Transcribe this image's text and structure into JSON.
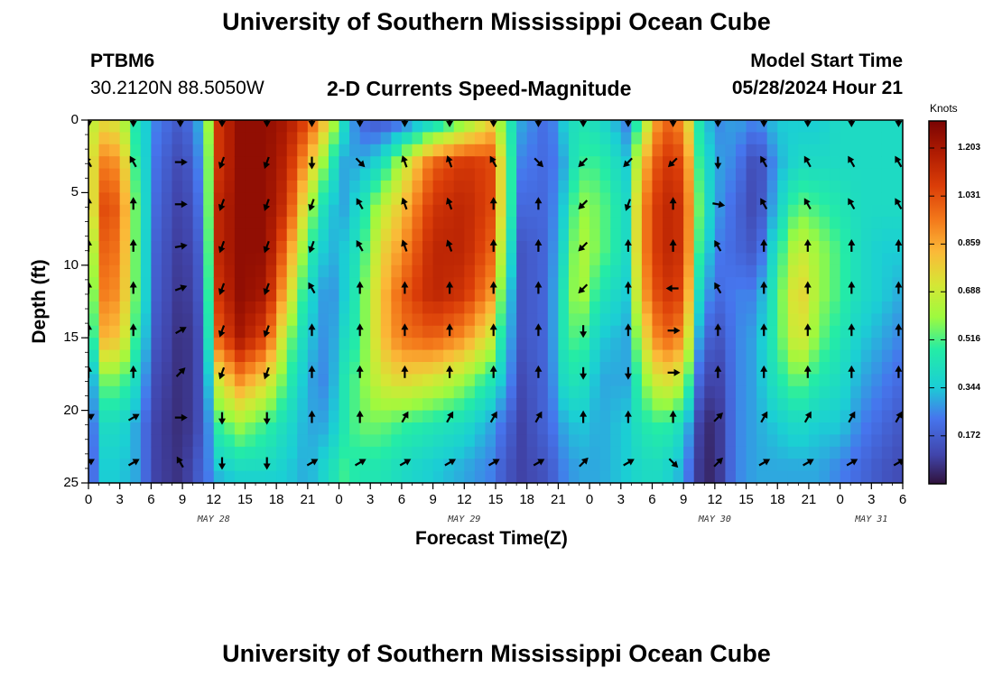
{
  "header": {
    "title_top": "University of Southern Mississippi Ocean Cube",
    "title_bottom": "University of Southern Mississippi Ocean Cube",
    "station_id": "PTBM6",
    "coordinates": "30.2120N  88.5050W",
    "plot_title": "2-D Currents Speed-Magnitude",
    "model_start_label": "Model Start Time",
    "model_start_value": "05/28/2024 Hour 21"
  },
  "chart_data": {
    "type": "heatmap",
    "title": "2-D Currents Speed-Magnitude",
    "xlabel": "Forecast Time(Z)",
    "ylabel": "Depth (ft)",
    "xlim": [
      0,
      78
    ],
    "ylim": [
      25,
      0
    ],
    "x_tick_values": [
      0,
      3,
      6,
      9,
      12,
      15,
      18,
      21,
      24,
      27,
      30,
      33,
      36,
      39,
      42,
      45,
      48,
      51,
      54,
      57,
      60,
      63,
      66,
      69,
      72,
      75,
      78
    ],
    "x_tick_labels": [
      "0",
      "3",
      "6",
      "9",
      "12",
      "15",
      "18",
      "21",
      "0",
      "3",
      "6",
      "9",
      "12",
      "15",
      "18",
      "21",
      "0",
      "3",
      "6",
      "9",
      "12",
      "15",
      "18",
      "21",
      "0",
      "3",
      "6"
    ],
    "y_tick_values": [
      0,
      5,
      10,
      15,
      20,
      25
    ],
    "y_tick_labels": [
      "0",
      "5",
      "10",
      "15",
      "20",
      "25"
    ],
    "date_labels": [
      {
        "text": "MAY 28",
        "hours": 12
      },
      {
        "text": "MAY 29",
        "hours": 36
      },
      {
        "text": "MAY 30",
        "hours": 60
      },
      {
        "text": "MAY 31",
        "hours": 75
      }
    ],
    "colorbar": {
      "label": "Knots",
      "min": 0.0,
      "max": 1.3,
      "ticks": [
        "1.203",
        "1.031",
        "0.859",
        "0.688",
        "0.516",
        "0.344",
        "0.172"
      ]
    },
    "speed_profile": {
      "hours": [
        0,
        1,
        3,
        4.5,
        6.5,
        9,
        11,
        12.5,
        14.5,
        17,
        19,
        21,
        23,
        24.5,
        26,
        28,
        30,
        33,
        36,
        38.5,
        40,
        41.5,
        44,
        45.5,
        47,
        49,
        51.5,
        53,
        55,
        57,
        58.5,
        60,
        62,
        64,
        66,
        68,
        70,
        72,
        74,
        76,
        78
      ],
      "depths": [
        0,
        3,
        6,
        9,
        12,
        15,
        18,
        21,
        24,
        25
      ],
      "speed_knots": [
        [
          0.6,
          0.55,
          0.45,
          0.3,
          0.2,
          0.15,
          0.1,
          0.1,
          0.1,
          0.1
        ],
        [
          0.75,
          0.95,
          1.05,
          1.0,
          0.95,
          0.85,
          0.55,
          0.4,
          0.35,
          0.35
        ],
        [
          0.7,
          0.9,
          1.0,
          0.95,
          0.9,
          0.8,
          0.55,
          0.4,
          0.35,
          0.35
        ],
        [
          0.45,
          0.5,
          0.55,
          0.55,
          0.55,
          0.5,
          0.4,
          0.3,
          0.3,
          0.3
        ],
        [
          0.25,
          0.22,
          0.2,
          0.18,
          0.17,
          0.15,
          0.12,
          0.1,
          0.1,
          0.1
        ],
        [
          0.15,
          0.1,
          0.08,
          0.07,
          0.06,
          0.05,
          0.05,
          0.05,
          0.06,
          0.06
        ],
        [
          0.35,
          0.3,
          0.25,
          0.2,
          0.18,
          0.15,
          0.15,
          0.15,
          0.2,
          0.2
        ],
        [
          1.1,
          1.1,
          1.15,
          1.15,
          1.1,
          1.0,
          0.7,
          0.5,
          0.35,
          0.3
        ],
        [
          1.25,
          1.25,
          1.25,
          1.25,
          1.25,
          1.2,
          0.9,
          0.6,
          0.4,
          0.35
        ],
        [
          1.25,
          1.25,
          1.25,
          1.25,
          1.2,
          1.05,
          0.75,
          0.5,
          0.4,
          0.35
        ],
        [
          1.2,
          1.15,
          1.1,
          0.95,
          0.8,
          0.6,
          0.5,
          0.4,
          0.35,
          0.35
        ],
        [
          1.05,
          0.85,
          0.65,
          0.5,
          0.4,
          0.35,
          0.3,
          0.3,
          0.3,
          0.3
        ],
        [
          0.75,
          0.5,
          0.35,
          0.3,
          0.25,
          0.25,
          0.25,
          0.3,
          0.4,
          0.4
        ],
        [
          0.4,
          0.3,
          0.3,
          0.35,
          0.35,
          0.4,
          0.45,
          0.45,
          0.5,
          0.5
        ],
        [
          0.2,
          0.3,
          0.4,
          0.45,
          0.5,
          0.5,
          0.55,
          0.55,
          0.45,
          0.45
        ],
        [
          0.15,
          0.4,
          0.65,
          0.75,
          0.8,
          0.8,
          0.7,
          0.55,
          0.45,
          0.45
        ],
        [
          0.2,
          0.65,
          0.8,
          0.9,
          1.0,
          0.95,
          0.75,
          0.5,
          0.4,
          0.4
        ],
        [
          0.35,
          1.0,
          1.1,
          1.15,
          1.15,
          1.0,
          0.7,
          0.45,
          0.35,
          0.35
        ],
        [
          0.55,
          1.1,
          1.15,
          1.15,
          1.1,
          0.9,
          0.6,
          0.4,
          0.3,
          0.3
        ],
        [
          0.75,
          1.05,
          1.05,
          1.0,
          0.9,
          0.7,
          0.45,
          0.3,
          0.25,
          0.25
        ],
        [
          0.5,
          0.6,
          0.6,
          0.5,
          0.4,
          0.35,
          0.3,
          0.2,
          0.15,
          0.15
        ],
        [
          0.3,
          0.25,
          0.2,
          0.15,
          0.15,
          0.15,
          0.12,
          0.1,
          0.1,
          0.1
        ],
        [
          0.2,
          0.2,
          0.2,
          0.2,
          0.2,
          0.2,
          0.2,
          0.2,
          0.15,
          0.15
        ],
        [
          0.35,
          0.3,
          0.35,
          0.4,
          0.45,
          0.45,
          0.4,
          0.3,
          0.25,
          0.25
        ],
        [
          0.45,
          0.5,
          0.6,
          0.65,
          0.65,
          0.55,
          0.45,
          0.35,
          0.3,
          0.3
        ],
        [
          0.4,
          0.5,
          0.55,
          0.55,
          0.45,
          0.35,
          0.3,
          0.3,
          0.3,
          0.3
        ],
        [
          0.25,
          0.35,
          0.4,
          0.4,
          0.35,
          0.3,
          0.3,
          0.35,
          0.35,
          0.35
        ],
        [
          0.55,
          0.8,
          0.9,
          0.9,
          0.85,
          0.7,
          0.55,
          0.45,
          0.4,
          0.4
        ],
        [
          1.0,
          1.1,
          1.15,
          1.15,
          1.1,
          1.0,
          0.75,
          0.5,
          0.4,
          0.4
        ],
        [
          0.9,
          1.05,
          1.1,
          1.1,
          1.05,
          0.9,
          0.65,
          0.4,
          0.3,
          0.3
        ],
        [
          0.45,
          0.5,
          0.55,
          0.5,
          0.4,
          0.3,
          0.2,
          0.1,
          0.08,
          0.08
        ],
        [
          0.25,
          0.3,
          0.3,
          0.25,
          0.2,
          0.12,
          0.06,
          0.03,
          0.03,
          0.03
        ],
        [
          0.3,
          0.25,
          0.2,
          0.2,
          0.25,
          0.25,
          0.25,
          0.25,
          0.25,
          0.25
        ],
        [
          0.25,
          0.1,
          0.1,
          0.15,
          0.25,
          0.3,
          0.3,
          0.3,
          0.3,
          0.3
        ],
        [
          0.35,
          0.3,
          0.35,
          0.45,
          0.5,
          0.5,
          0.45,
          0.35,
          0.3,
          0.3
        ],
        [
          0.35,
          0.4,
          0.55,
          0.7,
          0.8,
          0.75,
          0.55,
          0.4,
          0.3,
          0.3
        ],
        [
          0.35,
          0.4,
          0.5,
          0.6,
          0.6,
          0.55,
          0.45,
          0.35,
          0.3,
          0.3
        ],
        [
          0.4,
          0.4,
          0.45,
          0.5,
          0.5,
          0.45,
          0.4,
          0.35,
          0.25,
          0.25
        ],
        [
          0.4,
          0.4,
          0.4,
          0.4,
          0.4,
          0.35,
          0.3,
          0.25,
          0.2,
          0.2
        ],
        [
          0.4,
          0.4,
          0.4,
          0.35,
          0.35,
          0.3,
          0.25,
          0.2,
          0.15,
          0.15
        ],
        [
          0.4,
          0.4,
          0.4,
          0.35,
          0.3,
          0.25,
          0.2,
          0.15,
          0.12,
          0.12
        ]
      ]
    },
    "vectors": {
      "hours": [
        0.0,
        4.3,
        8.8,
        12.8,
        17.1,
        21.4,
        26.0,
        30.3,
        34.6,
        38.8,
        43.1,
        47.4,
        51.7,
        56.0,
        60.3,
        64.7,
        68.9,
        73.1,
        77.6
      ],
      "depths": [
        0,
        2.9,
        5.8,
        8.7,
        11.6,
        14.5,
        17.4,
        20.5,
        23.6
      ],
      "angles_deg": [
        [
          180,
          180,
          180,
          180,
          180,
          180,
          180,
          180,
          180,
          180,
          180,
          180,
          180,
          180,
          180,
          180,
          180,
          180,
          180
        ],
        [
          330,
          330,
          90,
          200,
          200,
          180,
          135,
          340,
          340,
          330,
          135,
          225,
          225,
          225,
          180,
          330,
          330,
          330,
          330
        ],
        [
          0,
          0,
          90,
          200,
          200,
          200,
          330,
          340,
          340,
          0,
          0,
          225,
          200,
          0,
          100,
          330,
          330,
          330,
          330
        ],
        [
          0,
          0,
          80,
          200,
          200,
          200,
          330,
          340,
          340,
          0,
          0,
          225,
          0,
          0,
          330,
          0,
          0,
          0,
          0
        ],
        [
          0,
          0,
          70,
          200,
          200,
          330,
          0,
          0,
          0,
          0,
          0,
          225,
          0,
          270,
          330,
          0,
          0,
          0,
          0
        ],
        [
          0,
          0,
          60,
          200,
          200,
          0,
          0,
          0,
          0,
          0,
          0,
          180,
          0,
          90,
          0,
          0,
          0,
          0,
          0
        ],
        [
          0,
          0,
          45,
          200,
          200,
          0,
          0,
          0,
          0,
          0,
          0,
          180,
          180,
          90,
          0,
          0,
          0,
          0,
          0
        ],
        [
          60,
          60,
          90,
          180,
          180,
          0,
          0,
          30,
          30,
          30,
          30,
          0,
          0,
          0,
          45,
          30,
          30,
          30,
          30
        ],
        [
          60,
          60,
          330,
          180,
          180,
          60,
          60,
          60,
          60,
          60,
          60,
          45,
          60,
          135,
          45,
          60,
          60,
          60,
          60
        ]
      ]
    }
  }
}
